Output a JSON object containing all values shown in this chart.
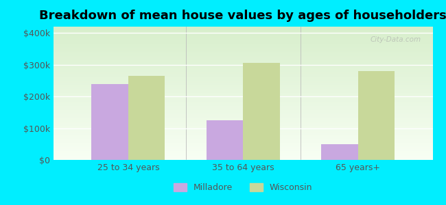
{
  "title": "Breakdown of mean house values by ages of householders",
  "categories": [
    "25 to 34 years",
    "35 to 64 years",
    "65 years+"
  ],
  "milladore_values": [
    240000,
    125000,
    50000
  ],
  "wisconsin_values": [
    265000,
    305000,
    280000
  ],
  "milladore_color": "#c9a8e0",
  "wisconsin_color": "#c8d89a",
  "background_color": "#00eeff",
  "yticks": [
    0,
    100000,
    200000,
    300000,
    400000
  ],
  "ytick_labels": [
    "$0",
    "$100k",
    "$200k",
    "$300k",
    "$400k"
  ],
  "ylim": [
    0,
    420000
  ],
  "bar_width": 0.32,
  "legend_milladore": "Milladore",
  "legend_wisconsin": "Wisconsin",
  "title_fontsize": 13,
  "tick_fontsize": 9,
  "legend_fontsize": 9,
  "text_color": "#555555"
}
